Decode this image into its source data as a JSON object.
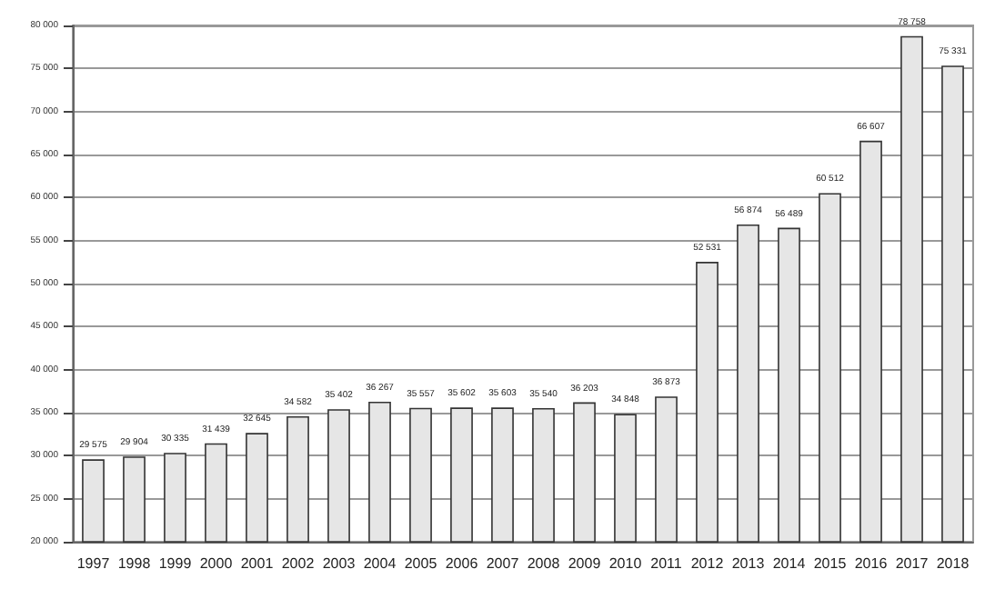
{
  "chart_data": {
    "type": "bar",
    "categories": [
      "1997",
      "1998",
      "1999",
      "2000",
      "2001",
      "2002",
      "2003",
      "2004",
      "2005",
      "2006",
      "2007",
      "2008",
      "2009",
      "2010",
      "2011",
      "2012",
      "2013",
      "2014",
      "2015",
      "2016",
      "2017",
      "2018"
    ],
    "values": [
      29575,
      29904,
      30335,
      31439,
      32645,
      34582,
      35402,
      36267,
      35557,
      35602,
      35603,
      35540,
      36203,
      34848,
      36873,
      52531,
      56874,
      56489,
      60512,
      66607,
      78758,
      75331
    ],
    "value_labels": [
      "29 575",
      "29 904",
      "30 335",
      "31 439",
      "32 645",
      "34 582",
      "35 402",
      "36 267",
      "35 557",
      "35 602",
      "35 603",
      "35 540",
      "36 203",
      "34 848",
      "36 873",
      "52 531",
      "56 874",
      "56 489",
      "60 512",
      "66 607",
      "78 758",
      "75 331"
    ],
    "color": "#e6e6e6",
    "ylim": [
      20000,
      80000
    ],
    "yticks": [
      {
        "value": 20000,
        "label": "20 000"
      },
      {
        "value": 25000,
        "label": "25 000"
      },
      {
        "value": 30000,
        "label": "30 000"
      },
      {
        "value": 35000,
        "label": "35 000"
      },
      {
        "value": 40000,
        "label": "40 000"
      },
      {
        "value": 45000,
        "label": "45 000"
      },
      {
        "value": 50000,
        "label": "50 000"
      },
      {
        "value": 55000,
        "label": "55 000"
      },
      {
        "value": 60000,
        "label": "60 000"
      },
      {
        "value": 65000,
        "label": "65 000"
      },
      {
        "value": 70000,
        "label": "70 000"
      },
      {
        "value": 75000,
        "label": "75 000"
      },
      {
        "value": 80000,
        "label": "80 000"
      }
    ],
    "grid": true
  }
}
